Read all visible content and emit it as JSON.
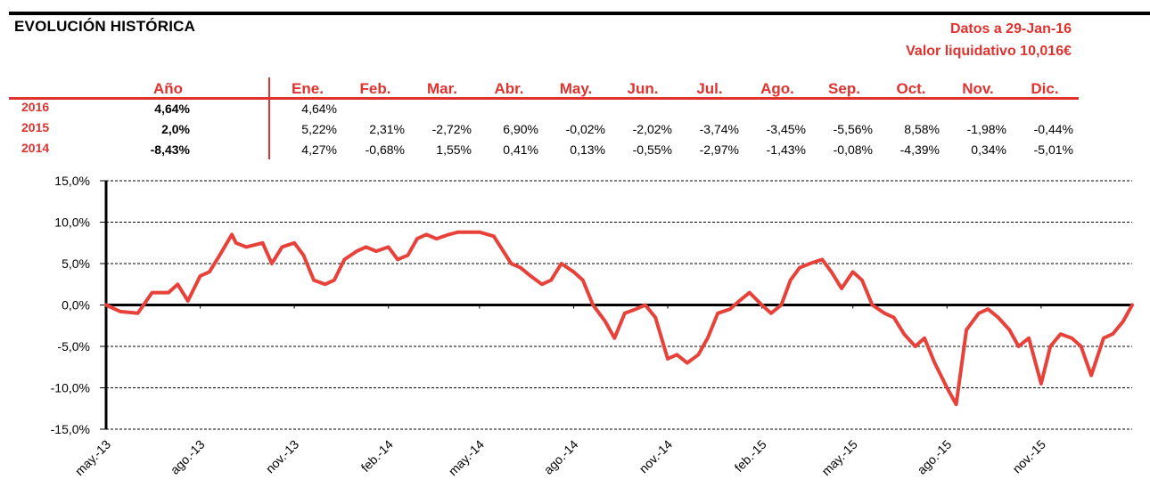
{
  "header": {
    "title": "EVOLUCIÓN HISTÓRICA",
    "date_text": "Datos a 29-Jan-16",
    "nav_text": "Valor liquidativo 10,016€"
  },
  "returns_table": {
    "year_header": "Año",
    "month_headers": [
      "Ene.",
      "Feb.",
      "Mar.",
      "Abr.",
      "May.",
      "Jun.",
      "Jul.",
      "Ago.",
      "Sep.",
      "Oct.",
      "Nov.",
      "Dic."
    ],
    "rows": [
      {
        "year": "2016",
        "ytd": "4,64%",
        "months": [
          "4,64%",
          "",
          "",
          "",
          "",
          "",
          "",
          "",
          "",
          "",
          "",
          ""
        ]
      },
      {
        "year": "2015",
        "ytd": "2,0%",
        "months": [
          "5,22%",
          "2,31%",
          "-2,72%",
          "6,90%",
          "-0,02%",
          "-2,02%",
          "-3,74%",
          "-3,45%",
          "-5,56%",
          "8,58%",
          "-1,98%",
          "-0,44%"
        ]
      },
      {
        "year": "2014",
        "ytd": "-8,43%",
        "months": [
          "4,27%",
          "-0,68%",
          "1,55%",
          "0,41%",
          "0,13%",
          "-0,55%",
          "-2,97%",
          "-1,43%",
          "-0,08%",
          "-4,39%",
          "0,34%",
          "-5,01%"
        ]
      }
    ]
  },
  "chart_data": {
    "type": "line",
    "series": [
      {
        "color": "#e8413a",
        "x": [
          "2013-05-01",
          "2013-05-15",
          "2013-06-01",
          "2013-06-15",
          "2013-07-01",
          "2013-07-10",
          "2013-07-20",
          "2013-08-01",
          "2013-08-10",
          "2013-08-20",
          "2013-09-01",
          "2013-09-05",
          "2013-09-15",
          "2013-10-01",
          "2013-10-10",
          "2013-10-20",
          "2013-11-01",
          "2013-11-10",
          "2013-11-20",
          "2013-12-01",
          "2013-12-10",
          "2013-12-20",
          "2014-01-01",
          "2014-01-10",
          "2014-01-20",
          "2014-02-01",
          "2014-02-10",
          "2014-02-20",
          "2014-03-01",
          "2014-03-10",
          "2014-03-20",
          "2014-04-01",
          "2014-04-10",
          "2014-04-20",
          "2014-05-01",
          "2014-05-15",
          "2014-06-01",
          "2014-06-10",
          "2014-06-20",
          "2014-07-01",
          "2014-07-10",
          "2014-07-20",
          "2014-08-01",
          "2014-08-10",
          "2014-08-20",
          "2014-09-01",
          "2014-09-10",
          "2014-09-20",
          "2014-10-01",
          "2014-10-10",
          "2014-10-20",
          "2014-11-01",
          "2014-11-10",
          "2014-11-20",
          "2014-12-01",
          "2014-12-10",
          "2014-12-20",
          "2015-01-01",
          "2015-01-10",
          "2015-01-20",
          "2015-02-01",
          "2015-02-10",
          "2015-02-20",
          "2015-03-01",
          "2015-03-10",
          "2015-03-20",
          "2015-04-01",
          "2015-04-10",
          "2015-04-20",
          "2015-05-01",
          "2015-05-10",
          "2015-05-20",
          "2015-06-01",
          "2015-06-10",
          "2015-06-20",
          "2015-07-01",
          "2015-07-10",
          "2015-07-20",
          "2015-08-01",
          "2015-08-10",
          "2015-08-20",
          "2015-09-01",
          "2015-09-10",
          "2015-09-20",
          "2015-10-01",
          "2015-10-10",
          "2015-10-20",
          "2015-11-01",
          "2015-11-10",
          "2015-11-20",
          "2015-12-01",
          "2015-12-10",
          "2015-12-20",
          "2016-01-01",
          "2016-01-10",
          "2016-01-20",
          "2016-01-29"
        ],
        "y": [
          0.0,
          -0.8,
          -1.0,
          1.5,
          1.5,
          2.5,
          0.5,
          3.5,
          4.0,
          6.0,
          8.5,
          7.5,
          7.0,
          7.5,
          5.0,
          7.0,
          7.5,
          6.0,
          3.0,
          2.5,
          3.0,
          5.5,
          6.5,
          7.0,
          6.5,
          7.0,
          5.5,
          6.0,
          8.0,
          8.5,
          8.0,
          8.5,
          8.8,
          8.8,
          8.8,
          8.3,
          5.0,
          4.5,
          3.5,
          2.5,
          3.0,
          5.0,
          4.0,
          3.0,
          0.0,
          -2.0,
          -4.0,
          -1.0,
          -0.5,
          0.0,
          -1.5,
          -6.5,
          -6.0,
          -7.0,
          -6.0,
          -4.0,
          -1.0,
          -0.5,
          0.5,
          1.5,
          0.0,
          -1.0,
          0.0,
          3.0,
          4.5,
          5.0,
          5.5,
          4.0,
          2.0,
          4.0,
          3.0,
          0.0,
          -1.0,
          -1.5,
          -3.5,
          -5.0,
          -4.0,
          -7.0,
          -10.0,
          -12.0,
          -3.0,
          -1.0,
          -0.5,
          -1.5,
          -3.0,
          -5.0,
          -4.0,
          -9.5,
          -5.0,
          -3.5,
          -4.0,
          -5.0,
          -8.5,
          -4.0,
          -3.5,
          -2.0,
          0.0
        ]
      }
    ],
    "y_ticks": [
      "15,0%",
      "10,0%",
      "5,0%",
      "0,0%",
      "-5,0%",
      "-10,0%",
      "-15,0%"
    ],
    "x_ticks": [
      "may.-13",
      "ago.-13",
      "nov.-13",
      "feb.-14",
      "may.-14",
      "ago.-14",
      "nov.-14",
      "feb.-15",
      "may.-15",
      "ago.-15",
      "nov.-15"
    ],
    "ylim": [
      -15,
      15
    ],
    "xlim": [
      "2013-05-01",
      "2016-01-29"
    ],
    "y_unit": "%",
    "grid": "horizontal dashed",
    "legend": "none"
  }
}
